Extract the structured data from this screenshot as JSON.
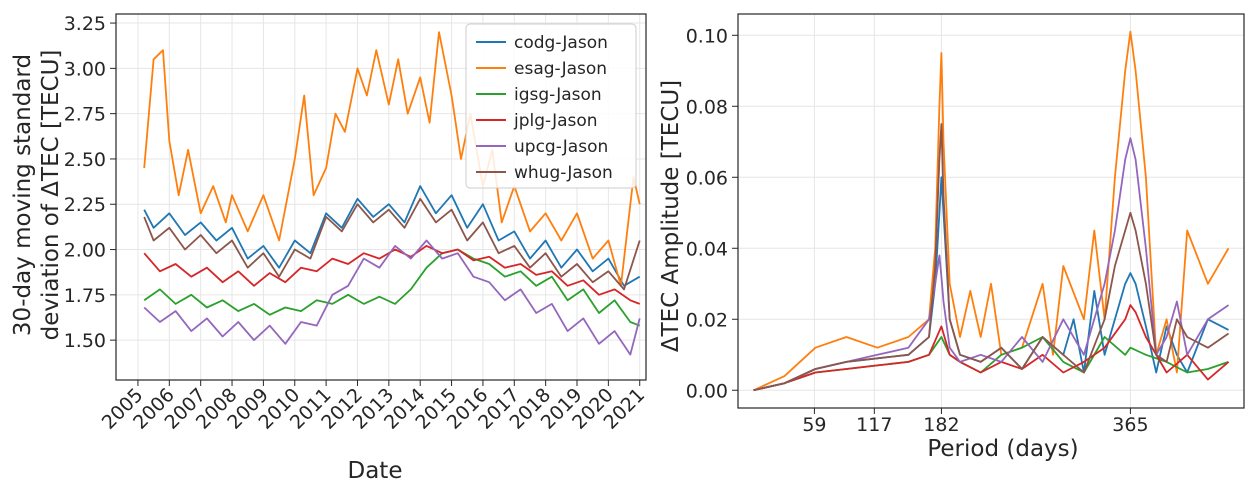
{
  "colors": {
    "codg": "#1f77b4",
    "esag": "#ff7f0e",
    "igsg": "#2ca02c",
    "jplg": "#d62728",
    "upcg": "#9467bd",
    "whug": "#8c564b"
  },
  "chart_data": [
    {
      "type": "line",
      "title": "",
      "xlabel": "Date",
      "ylabel_lines": [
        "30-day moving standard",
        "deviation of ΔTEC [TECU]"
      ],
      "x_ticks": [
        "2005",
        "2006",
        "2007",
        "2008",
        "2009",
        "2010",
        "2011",
        "2012",
        "2013",
        "2014",
        "2015",
        "2016",
        "2017",
        "2018",
        "2019",
        "2020",
        "2021"
      ],
      "y_ticks": [
        "1.50",
        "1.75",
        "2.00",
        "2.25",
        "2.50",
        "2.75",
        "3.00",
        "3.25"
      ],
      "xlim": [
        2004.3,
        2021.2
      ],
      "ylim": [
        1.28,
        3.3
      ],
      "grid": true,
      "legend_position": "top-right",
      "legend": [
        "codg-Jason",
        "esag-Jason",
        "igsg-Jason",
        "jplg-Jason",
        "upcg-Jason",
        "whug-Jason"
      ],
      "series": [
        {
          "name": "codg-Jason",
          "color_key": "codg",
          "x": [
            2005.2,
            2005.5,
            2006.0,
            2006.5,
            2007.0,
            2007.5,
            2008.0,
            2008.5,
            2009.0,
            2009.5,
            2010.0,
            2010.5,
            2011.0,
            2011.5,
            2012.0,
            2012.5,
            2013.0,
            2013.5,
            2014.0,
            2014.5,
            2015.0,
            2015.5,
            2016.0,
            2016.5,
            2017.0,
            2017.5,
            2018.0,
            2018.5,
            2019.0,
            2019.5,
            2020.0,
            2020.5,
            2021.0
          ],
          "y": [
            2.22,
            2.12,
            2.2,
            2.08,
            2.15,
            2.05,
            2.12,
            1.95,
            2.02,
            1.9,
            2.05,
            1.98,
            2.2,
            2.12,
            2.28,
            2.18,
            2.25,
            2.15,
            2.35,
            2.2,
            2.3,
            2.12,
            2.25,
            2.05,
            2.1,
            1.95,
            2.05,
            1.9,
            2.0,
            1.88,
            1.95,
            1.8,
            1.85
          ]
        },
        {
          "name": "esag-Jason",
          "color_key": "esag",
          "x": [
            2005.2,
            2005.5,
            2005.8,
            2006.0,
            2006.3,
            2006.6,
            2007.0,
            2007.4,
            2007.8,
            2008.0,
            2008.5,
            2009.0,
            2009.5,
            2010.0,
            2010.3,
            2010.6,
            2011.0,
            2011.3,
            2011.6,
            2012.0,
            2012.3,
            2012.6,
            2013.0,
            2013.3,
            2013.6,
            2014.0,
            2014.3,
            2014.6,
            2015.0,
            2015.3,
            2015.6,
            2016.0,
            2016.3,
            2016.6,
            2017.0,
            2017.5,
            2018.0,
            2018.5,
            2019.0,
            2019.5,
            2020.0,
            2020.4,
            2020.8,
            2021.0
          ],
          "y": [
            2.45,
            3.05,
            3.1,
            2.6,
            2.3,
            2.55,
            2.2,
            2.35,
            2.15,
            2.3,
            2.1,
            2.3,
            2.05,
            2.5,
            2.85,
            2.3,
            2.45,
            2.75,
            2.65,
            3.0,
            2.85,
            3.1,
            2.8,
            3.05,
            2.75,
            2.95,
            2.7,
            3.2,
            2.85,
            2.5,
            2.75,
            2.35,
            2.55,
            2.15,
            2.35,
            2.1,
            2.2,
            2.05,
            2.2,
            1.95,
            2.05,
            1.8,
            2.4,
            2.25
          ]
        },
        {
          "name": "igsg-Jason",
          "color_key": "igsg",
          "x": [
            2005.2,
            2005.7,
            2006.2,
            2006.7,
            2007.2,
            2007.7,
            2008.2,
            2008.7,
            2009.2,
            2009.7,
            2010.2,
            2010.7,
            2011.2,
            2011.7,
            2012.2,
            2012.7,
            2013.2,
            2013.7,
            2014.2,
            2014.7,
            2015.2,
            2015.7,
            2016.2,
            2016.7,
            2017.2,
            2017.7,
            2018.2,
            2018.7,
            2019.2,
            2019.7,
            2020.2,
            2020.7,
            2021.0
          ],
          "y": [
            1.72,
            1.78,
            1.7,
            1.75,
            1.68,
            1.72,
            1.66,
            1.7,
            1.64,
            1.68,
            1.66,
            1.72,
            1.7,
            1.75,
            1.7,
            1.74,
            1.7,
            1.78,
            1.9,
            1.98,
            2.0,
            1.95,
            1.92,
            1.85,
            1.88,
            1.8,
            1.85,
            1.72,
            1.78,
            1.65,
            1.72,
            1.6,
            1.58
          ]
        },
        {
          "name": "jplg-Jason",
          "color_key": "jplg",
          "x": [
            2005.2,
            2005.7,
            2006.2,
            2006.7,
            2007.2,
            2007.7,
            2008.2,
            2008.7,
            2009.2,
            2009.7,
            2010.2,
            2010.7,
            2011.2,
            2011.7,
            2012.2,
            2012.7,
            2013.2,
            2013.7,
            2014.2,
            2014.7,
            2015.2,
            2015.7,
            2016.2,
            2016.7,
            2017.2,
            2017.7,
            2018.2,
            2018.7,
            2019.2,
            2019.7,
            2020.2,
            2020.7,
            2021.0
          ],
          "y": [
            1.98,
            1.88,
            1.92,
            1.85,
            1.9,
            1.82,
            1.88,
            1.8,
            1.87,
            1.82,
            1.9,
            1.88,
            1.95,
            1.92,
            1.98,
            1.95,
            2.0,
            1.96,
            2.02,
            1.98,
            2.0,
            1.94,
            1.96,
            1.9,
            1.92,
            1.86,
            1.88,
            1.8,
            1.83,
            1.75,
            1.78,
            1.72,
            1.7
          ]
        },
        {
          "name": "upcg-Jason",
          "color_key": "upcg",
          "x": [
            2005.2,
            2005.7,
            2006.2,
            2006.7,
            2007.2,
            2007.7,
            2008.2,
            2008.7,
            2009.2,
            2009.7,
            2010.2,
            2010.7,
            2011.2,
            2011.7,
            2012.2,
            2012.7,
            2013.2,
            2013.7,
            2014.2,
            2014.7,
            2015.2,
            2015.7,
            2016.2,
            2016.7,
            2017.2,
            2017.7,
            2018.2,
            2018.7,
            2019.2,
            2019.7,
            2020.2,
            2020.7,
            2021.0
          ],
          "y": [
            1.68,
            1.6,
            1.66,
            1.55,
            1.62,
            1.52,
            1.6,
            1.5,
            1.58,
            1.48,
            1.6,
            1.58,
            1.75,
            1.8,
            1.95,
            1.9,
            2.02,
            1.95,
            2.05,
            1.95,
            1.98,
            1.85,
            1.82,
            1.72,
            1.78,
            1.65,
            1.7,
            1.55,
            1.62,
            1.48,
            1.55,
            1.42,
            1.62
          ]
        },
        {
          "name": "whug-Jason",
          "color_key": "whug",
          "x": [
            2005.2,
            2005.5,
            2006.0,
            2006.5,
            2007.0,
            2007.5,
            2008.0,
            2008.5,
            2009.0,
            2009.5,
            2010.0,
            2010.5,
            2011.0,
            2011.5,
            2012.0,
            2012.5,
            2013.0,
            2013.5,
            2014.0,
            2014.5,
            2015.0,
            2015.5,
            2016.0,
            2016.5,
            2017.0,
            2017.5,
            2018.0,
            2018.5,
            2019.0,
            2019.5,
            2020.0,
            2020.5,
            2021.0
          ],
          "y": [
            2.18,
            2.05,
            2.12,
            2.0,
            2.08,
            1.98,
            2.05,
            1.9,
            1.98,
            1.85,
            2.0,
            1.95,
            2.18,
            2.1,
            2.25,
            2.15,
            2.22,
            2.12,
            2.28,
            2.15,
            2.22,
            2.05,
            2.15,
            1.98,
            2.02,
            1.9,
            1.98,
            1.85,
            1.92,
            1.82,
            1.88,
            1.78,
            2.05
          ]
        }
      ]
    },
    {
      "type": "line",
      "title": "",
      "xlabel": "Period (days)",
      "ylabel": "ΔTEC Amplitude [TECU]",
      "x_ticks": [
        "59",
        "117",
        "182",
        "365"
      ],
      "y_ticks": [
        "0.00",
        "0.02",
        "0.04",
        "0.06",
        "0.08",
        "0.10"
      ],
      "xlim": [
        -15,
        475
      ],
      "ylim": [
        -0.005,
        0.106
      ],
      "grid": true,
      "series": [
        {
          "name": "codg-Jason",
          "color_key": "codg",
          "x": [
            0,
            30,
            60,
            90,
            120,
            150,
            170,
            176,
            180,
            182,
            184,
            190,
            200,
            220,
            240,
            260,
            280,
            300,
            310,
            320,
            330,
            340,
            350,
            360,
            365,
            370,
            380,
            390,
            400,
            410,
            420,
            440,
            460
          ],
          "y": [
            0.0,
            0.002,
            0.006,
            0.008,
            0.009,
            0.01,
            0.015,
            0.03,
            0.05,
            0.06,
            0.05,
            0.02,
            0.01,
            0.008,
            0.012,
            0.006,
            0.015,
            0.01,
            0.02,
            0.005,
            0.028,
            0.01,
            0.02,
            0.03,
            0.033,
            0.03,
            0.018,
            0.005,
            0.018,
            0.01,
            0.005,
            0.02,
            0.017
          ]
        },
        {
          "name": "esag-Jason",
          "color_key": "esag",
          "x": [
            0,
            30,
            60,
            90,
            120,
            150,
            170,
            176,
            180,
            182,
            184,
            190,
            200,
            210,
            220,
            230,
            240,
            260,
            280,
            290,
            300,
            320,
            330,
            340,
            350,
            360,
            365,
            370,
            380,
            390,
            400,
            410,
            420,
            440,
            460
          ],
          "y": [
            0.0,
            0.004,
            0.012,
            0.015,
            0.012,
            0.015,
            0.02,
            0.04,
            0.08,
            0.095,
            0.07,
            0.03,
            0.015,
            0.028,
            0.015,
            0.03,
            0.01,
            0.012,
            0.03,
            0.01,
            0.035,
            0.02,
            0.045,
            0.02,
            0.06,
            0.09,
            0.101,
            0.09,
            0.06,
            0.01,
            0.02,
            0.005,
            0.045,
            0.03,
            0.04
          ]
        },
        {
          "name": "igsg-Jason",
          "color_key": "igsg",
          "x": [
            0,
            30,
            60,
            90,
            120,
            150,
            170,
            182,
            190,
            200,
            220,
            240,
            260,
            280,
            300,
            320,
            340,
            360,
            365,
            380,
            400,
            420,
            440,
            460
          ],
          "y": [
            0.0,
            0.002,
            0.005,
            0.006,
            0.007,
            0.008,
            0.01,
            0.015,
            0.01,
            0.008,
            0.005,
            0.01,
            0.012,
            0.015,
            0.008,
            0.005,
            0.015,
            0.01,
            0.012,
            0.01,
            0.008,
            0.005,
            0.006,
            0.008
          ]
        },
        {
          "name": "jplg-Jason",
          "color_key": "jplg",
          "x": [
            0,
            30,
            60,
            90,
            120,
            150,
            170,
            182,
            190,
            200,
            220,
            240,
            260,
            280,
            300,
            320,
            340,
            360,
            365,
            370,
            380,
            400,
            420,
            440,
            460
          ],
          "y": [
            0.0,
            0.002,
            0.005,
            0.006,
            0.007,
            0.008,
            0.01,
            0.018,
            0.01,
            0.008,
            0.005,
            0.008,
            0.006,
            0.01,
            0.005,
            0.008,
            0.012,
            0.02,
            0.024,
            0.022,
            0.015,
            0.005,
            0.01,
            0.003,
            0.008
          ]
        },
        {
          "name": "upcg-Jason",
          "color_key": "upcg",
          "x": [
            0,
            30,
            60,
            90,
            120,
            150,
            170,
            176,
            180,
            182,
            184,
            190,
            200,
            220,
            240,
            260,
            280,
            300,
            320,
            340,
            350,
            360,
            365,
            370,
            380,
            390,
            400,
            410,
            420,
            440,
            460
          ],
          "y": [
            0.0,
            0.002,
            0.006,
            0.008,
            0.01,
            0.012,
            0.02,
            0.03,
            0.038,
            0.032,
            0.025,
            0.012,
            0.008,
            0.01,
            0.008,
            0.015,
            0.008,
            0.02,
            0.01,
            0.03,
            0.045,
            0.065,
            0.071,
            0.065,
            0.04,
            0.01,
            0.015,
            0.025,
            0.01,
            0.02,
            0.024
          ]
        },
        {
          "name": "whug-Jason",
          "color_key": "whug",
          "x": [
            0,
            30,
            60,
            90,
            120,
            150,
            170,
            176,
            180,
            182,
            184,
            190,
            200,
            220,
            240,
            260,
            280,
            300,
            320,
            340,
            350,
            360,
            365,
            370,
            380,
            390,
            400,
            410,
            420,
            440,
            460
          ],
          "y": [
            0.0,
            0.002,
            0.006,
            0.008,
            0.009,
            0.01,
            0.015,
            0.035,
            0.065,
            0.075,
            0.055,
            0.02,
            0.01,
            0.008,
            0.012,
            0.006,
            0.015,
            0.01,
            0.005,
            0.02,
            0.035,
            0.045,
            0.05,
            0.045,
            0.03,
            0.01,
            0.008,
            0.02,
            0.015,
            0.012,
            0.016
          ]
        }
      ]
    }
  ]
}
